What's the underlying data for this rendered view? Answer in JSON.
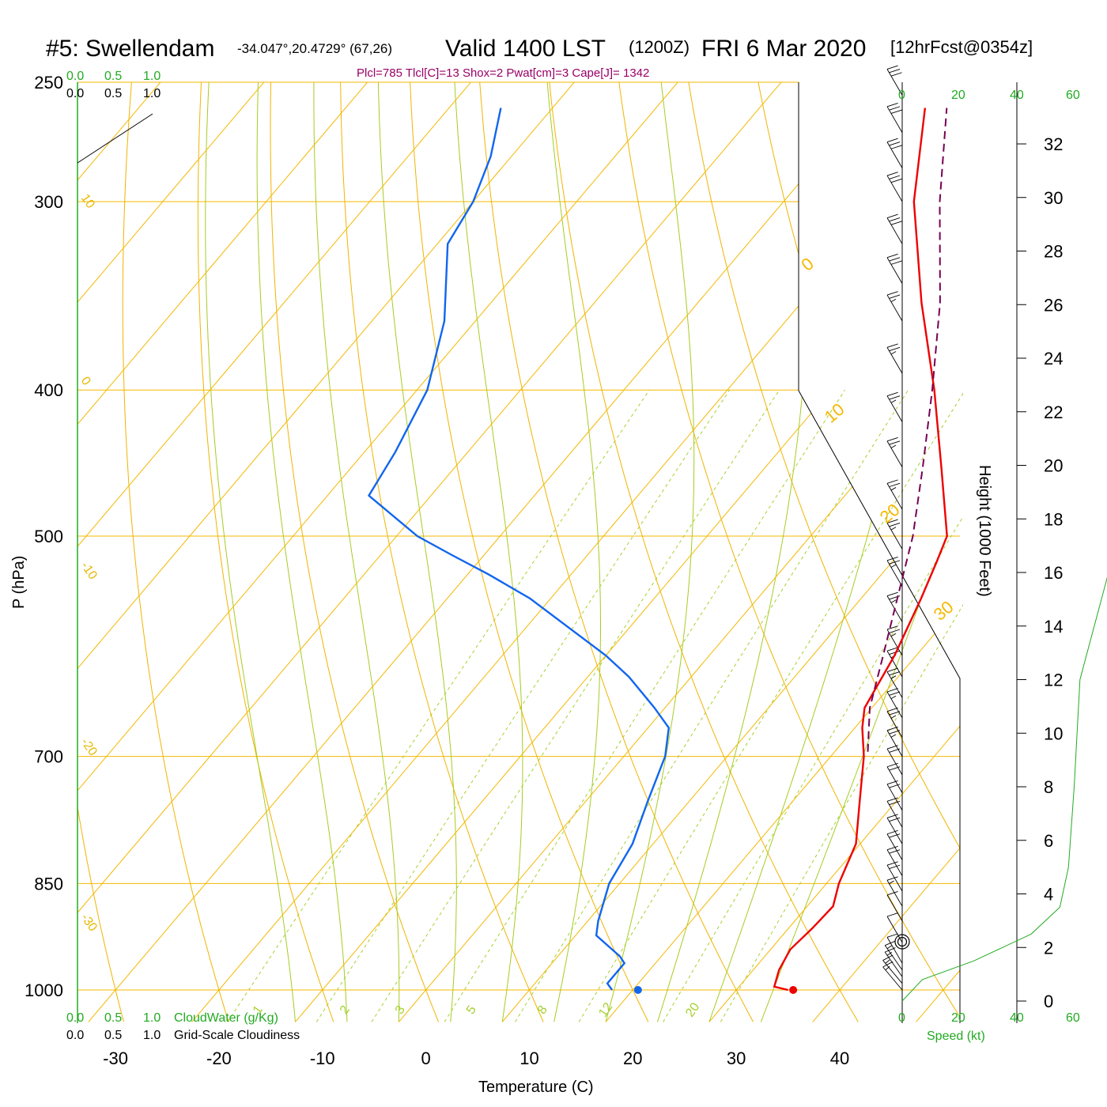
{
  "header": {
    "station": "#5: Swellendam",
    "coords": "-34.047°,20.4729° (67,26)",
    "valid": "Valid 1400 LST",
    "zulu": "(1200Z)",
    "date": "FRI 6 Mar 2020",
    "forecast": "[12hrFcst@0354z]"
  },
  "indices": "Plcl=785 Tlcl[C]=13 Shox=2 Pwat[cm]=3 Cape[J]= 1342",
  "cloud_scale": {
    "top_green": [
      "0.0",
      "0.5",
      "1.0"
    ],
    "top_black": [
      "0.0",
      "0.5",
      "1.0"
    ],
    "bottom_green": [
      "0.0",
      "0.5",
      "1.0"
    ],
    "bottom_black": [
      "0.0",
      "0.5",
      "1.0"
    ],
    "cloudwater_label": "CloudWater (g/Kg)",
    "cloudiness_label": "Grid-Scale Cloudiness"
  },
  "speed_scale": {
    "ticks": [
      "0",
      "20",
      "40",
      "60"
    ],
    "label": "Speed (kt)"
  },
  "colors": {
    "temperature": "#ee0000",
    "dewpoint": "#1166ee",
    "parcel": "#770055",
    "isobar": "#f5b800",
    "dry_adiabat": "#f0b400",
    "moist_adiabat": "#a6cc22",
    "mixing_ratio": "#a6d12e",
    "green": "#22aa22"
  },
  "chart_data": {
    "type": "line",
    "chart_kind": "skew-T log-P",
    "xlabel": "Temperature (C)",
    "ylabel": "P (hPa)",
    "y2label": "Height (1000 Feet)",
    "x_ticks": [
      "-30",
      "-20",
      "-10",
      "0",
      "10",
      "20",
      "30",
      "40"
    ],
    "y_ticks": [
      "250",
      "300",
      "400",
      "500",
      "700",
      "850",
      "1000"
    ],
    "height_ticks": [
      "0",
      "2",
      "4",
      "6",
      "8",
      "10",
      "12",
      "14",
      "16",
      "18",
      "20",
      "22",
      "24",
      "26",
      "28",
      "30",
      "32"
    ],
    "isotherm_labels": [
      "0",
      "10",
      "20",
      "30"
    ],
    "dry_adiabat_labels": [
      "10",
      "0",
      "-10",
      "-20",
      "-30"
    ],
    "mixing_ratio_labels": [
      "1",
      "2",
      "3",
      "5",
      "8",
      "12",
      "20"
    ],
    "series": [
      {
        "key": "temperature",
        "points": [
          [
            1000,
            35.0
          ],
          [
            995,
            33.4
          ],
          [
            970,
            32.5
          ],
          [
            940,
            31.9
          ],
          [
            910,
            32.3
          ],
          [
            880,
            32.5
          ],
          [
            850,
            31.2
          ],
          [
            800,
            29.6
          ],
          [
            750,
            26.5
          ],
          [
            700,
            23.2
          ],
          [
            670,
            20.7
          ],
          [
            650,
            19.3
          ],
          [
            600,
            17.9
          ],
          [
            550,
            15.8
          ],
          [
            520,
            14.3
          ],
          [
            500,
            13.2
          ],
          [
            450,
            7.0
          ],
          [
            400,
            0.0
          ],
          [
            350,
            -8.4
          ],
          [
            300,
            -17.4
          ],
          [
            260,
            -24.0
          ]
        ]
      },
      {
        "key": "dewpoint",
        "points": [
          [
            1000,
            18.0
          ],
          [
            990,
            17.0
          ],
          [
            960,
            17.0
          ],
          [
            950,
            16.0
          ],
          [
            920,
            12.0
          ],
          [
            900,
            11.0
          ],
          [
            850,
            9.0
          ],
          [
            800,
            8.0
          ],
          [
            750,
            6.0
          ],
          [
            700,
            4.0
          ],
          [
            670,
            2.0
          ],
          [
            650,
            -1.0
          ],
          [
            620,
            -6.0
          ],
          [
            600,
            -10.0
          ],
          [
            550,
            -22.0
          ],
          [
            530,
            -28.0
          ],
          [
            515,
            -33.0
          ],
          [
            500,
            -38.0
          ],
          [
            470,
            -46.0
          ],
          [
            440,
            -47.0
          ],
          [
            400,
            -49.0
          ],
          [
            360,
            -53.0
          ],
          [
            320,
            -59.0
          ],
          [
            300,
            -60.0
          ],
          [
            280,
            -62.0
          ],
          [
            260,
            -65.0
          ]
        ]
      },
      {
        "key": "parcel",
        "points": [
          [
            695,
            23.2
          ],
          [
            650,
            19.8
          ],
          [
            600,
            16.8
          ],
          [
            550,
            13.5
          ],
          [
            500,
            9.9
          ],
          [
            450,
            5.2
          ],
          [
            400,
            -0.2
          ],
          [
            350,
            -6.6
          ],
          [
            300,
            -14.9
          ],
          [
            260,
            -21.9
          ]
        ]
      }
    ],
    "surface_temperature": 35.5,
    "surface_dewpoint": 20.5,
    "height_profile_kft": [
      [
        0,
        0
      ],
      [
        0.8,
        7
      ],
      [
        1.5,
        25
      ],
      [
        2.5,
        45
      ],
      [
        3.5,
        55
      ],
      [
        5,
        58
      ],
      [
        8,
        60
      ],
      [
        12,
        62
      ],
      [
        16,
        72
      ],
      [
        22,
        90
      ],
      [
        28,
        105
      ],
      [
        32,
        115
      ]
    ],
    "wind_barbs": [
      {
        "p": 1000,
        "dir": 320,
        "spd": 15
      },
      {
        "p": 990,
        "dir": 320,
        "spd": 15
      },
      {
        "p": 980,
        "dir": 325,
        "spd": 15
      },
      {
        "p": 970,
        "dir": 325,
        "spd": 15
      },
      {
        "p": 960,
        "dir": 330,
        "spd": 10
      },
      {
        "p": 930,
        "dir": 330,
        "spd": 10
      },
      {
        "p": 900,
        "dir": 330,
        "spd": 10
      },
      {
        "p": 880,
        "dir": 330,
        "spd": 15
      },
      {
        "p": 860,
        "dir": 330,
        "spd": 20
      },
      {
        "p": 840,
        "dir": 330,
        "spd": 20
      },
      {
        "p": 820,
        "dir": 330,
        "spd": 20
      },
      {
        "p": 800,
        "dir": 330,
        "spd": 20
      },
      {
        "p": 780,
        "dir": 330,
        "spd": 20
      },
      {
        "p": 760,
        "dir": 330,
        "spd": 20
      },
      {
        "p": 740,
        "dir": 330,
        "spd": 20
      },
      {
        "p": 720,
        "dir": 330,
        "spd": 20
      },
      {
        "p": 700,
        "dir": 330,
        "spd": 25
      },
      {
        "p": 680,
        "dir": 330,
        "spd": 25
      },
      {
        "p": 660,
        "dir": 330,
        "spd": 25
      },
      {
        "p": 640,
        "dir": 330,
        "spd": 25
      },
      {
        "p": 620,
        "dir": 330,
        "spd": 25
      },
      {
        "p": 600,
        "dir": 330,
        "spd": 25
      },
      {
        "p": 570,
        "dir": 330,
        "spd": 25
      },
      {
        "p": 540,
        "dir": 330,
        "spd": 25
      },
      {
        "p": 510,
        "dir": 330,
        "spd": 25
      },
      {
        "p": 480,
        "dir": 330,
        "spd": 25
      },
      {
        "p": 450,
        "dir": 330,
        "spd": 25
      },
      {
        "p": 420,
        "dir": 330,
        "spd": 25
      },
      {
        "p": 390,
        "dir": 330,
        "spd": 25
      },
      {
        "p": 360,
        "dir": 330,
        "spd": 25
      },
      {
        "p": 340,
        "dir": 330,
        "spd": 30
      },
      {
        "p": 320,
        "dir": 330,
        "spd": 30
      },
      {
        "p": 300,
        "dir": 330,
        "spd": 30
      },
      {
        "p": 285,
        "dir": 330,
        "spd": 30
      },
      {
        "p": 270,
        "dir": 330,
        "spd": 30
      },
      {
        "p": 255,
        "dir": 330,
        "spd": 30
      }
    ]
  }
}
